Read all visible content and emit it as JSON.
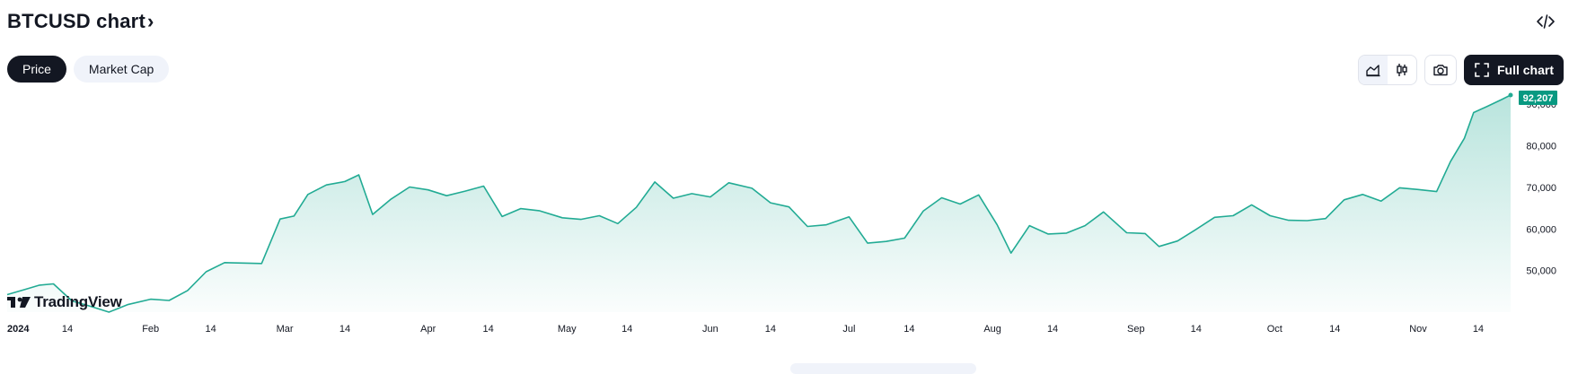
{
  "header": {
    "title": "BTCUSD chart",
    "chevron": "›"
  },
  "icons": {
    "embed": "code-embed-icon",
    "area_chart": "area-chart-icon",
    "candles": "candlestick-icon",
    "camera": "camera-icon",
    "fullscreen": "fullscreen-icon"
  },
  "tabs": [
    {
      "label": "Price",
      "active": true
    },
    {
      "label": "Market Cap",
      "active": false
    }
  ],
  "toolbar": {
    "full_chart_label": "Full chart"
  },
  "brand": {
    "logo_text": "TradingView"
  },
  "colors": {
    "line": "#22ab94",
    "badge": "#089981",
    "text": "#131722",
    "button_dark": "#131722",
    "pill_light": "#f0f3fa"
  },
  "chart_data": {
    "type": "area",
    "title": "",
    "xlabel": "",
    "ylabel": "",
    "ylim": [
      40000,
      92207
    ],
    "y_ticks": [
      "50,000",
      "60,000",
      "70,000",
      "80,000",
      "90,000"
    ],
    "x_tick_labels": [
      "2024",
      "14",
      "Feb",
      "14",
      "Mar",
      "14",
      "Apr",
      "14",
      "May",
      "14",
      "Jun",
      "14",
      "Jul",
      "14",
      "Aug",
      "14",
      "Sep",
      "14",
      "Oct",
      "14",
      "Nov",
      "14"
    ],
    "last_price_label": "92,207",
    "series": [
      {
        "x": [
          "2024-01-01",
          "2024-01-05",
          "2024-01-08",
          "2024-01-11",
          "2024-01-15",
          "2024-01-19",
          "2024-01-23",
          "2024-01-27",
          "2024-02-01",
          "2024-02-05",
          "2024-02-09",
          "2024-02-13",
          "2024-02-17",
          "2024-02-21",
          "2024-02-25",
          "2024-02-29",
          "2024-03-03",
          "2024-03-06",
          "2024-03-10",
          "2024-03-14",
          "2024-03-17",
          "2024-03-20",
          "2024-03-24",
          "2024-03-28",
          "2024-04-01",
          "2024-04-05",
          "2024-04-09",
          "2024-04-13",
          "2024-04-17",
          "2024-04-21",
          "2024-04-25",
          "2024-04-30",
          "2024-05-04",
          "2024-05-08",
          "2024-05-12",
          "2024-05-16",
          "2024-05-20",
          "2024-05-24",
          "2024-05-28",
          "2024-06-01",
          "2024-06-05",
          "2024-06-10",
          "2024-06-14",
          "2024-06-18",
          "2024-06-22",
          "2024-06-26",
          "2024-07-01",
          "2024-07-05",
          "2024-07-09",
          "2024-07-13",
          "2024-07-17",
          "2024-07-21",
          "2024-07-25",
          "2024-07-29",
          "2024-08-02",
          "2024-08-05",
          "2024-08-09",
          "2024-08-13",
          "2024-08-17",
          "2024-08-21",
          "2024-08-25",
          "2024-08-30",
          "2024-09-03",
          "2024-09-06",
          "2024-09-10",
          "2024-09-14",
          "2024-09-18",
          "2024-09-22",
          "2024-09-26",
          "2024-09-30",
          "2024-10-04",
          "2024-10-08",
          "2024-10-12",
          "2024-10-16",
          "2024-10-20",
          "2024-10-24",
          "2024-10-28",
          "2024-11-01",
          "2024-11-05",
          "2024-11-08",
          "2024-11-11",
          "2024-11-13",
          "2024-11-16",
          "2024-11-19",
          "2024-11-21"
        ],
        "values": [
          44200,
          45500,
          46500,
          46800,
          42700,
          41400,
          40000,
          41800,
          43100,
          42800,
          45200,
          49700,
          51900,
          51800,
          51700,
          62400,
          63100,
          68300,
          70600,
          71400,
          73000,
          63500,
          67200,
          70100,
          69400,
          68000,
          69100,
          70300,
          63000,
          64900,
          64400,
          62700,
          62300,
          63200,
          61300,
          65200,
          71300,
          67400,
          68500,
          67700,
          71100,
          69800,
          66300,
          65300,
          60600,
          61000,
          62900,
          56600,
          57000,
          57800,
          64300,
          67500,
          66000,
          68200,
          61000,
          54200,
          60800,
          58800,
          59000,
          60800,
          64100,
          59100,
          58900,
          55800,
          57100,
          59900,
          62800,
          63200,
          65800,
          63200,
          62100,
          62000,
          62500,
          67000,
          68300,
          66700,
          69900,
          69500,
          69000,
          76200,
          81800,
          88000,
          89500,
          91100,
          92207
        ]
      }
    ]
  }
}
